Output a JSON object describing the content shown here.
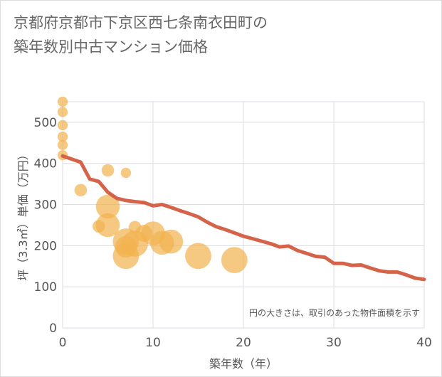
{
  "page": {
    "title_line1": "京都府京都市下京区西七条南衣田町の",
    "title_line2": "築年数別中古マンション価格"
  },
  "chart_data": {
    "type": "scatter",
    "title": "京都府京都市下京区西七条南衣田町の築年数別中古マンション価格",
    "xlabel": "築年数（年）",
    "ylabel": "坪（3.3㎡）単価（万円）",
    "xlim": [
      0,
      40
    ],
    "ylim": [
      0,
      550
    ],
    "xticks": [
      0,
      10,
      20,
      30,
      40
    ],
    "yticks": [
      0,
      100,
      200,
      300,
      400,
      500
    ],
    "grid": true,
    "note": "円の大きさは、取引のあった物件面積を示す",
    "colors": {
      "bubble": "#f2b24f",
      "trend": "#d4634a",
      "grid": "#d8dde8"
    },
    "bubbles": [
      {
        "x": 0,
        "y": 550,
        "size": 2
      },
      {
        "x": 0,
        "y": 525,
        "size": 2
      },
      {
        "x": 0,
        "y": 493,
        "size": 2
      },
      {
        "x": 0,
        "y": 465,
        "size": 2
      },
      {
        "x": 0,
        "y": 445,
        "size": 2
      },
      {
        "x": 0,
        "y": 420,
        "size": 2
      },
      {
        "x": 2,
        "y": 335,
        "size": 3
      },
      {
        "x": 4,
        "y": 247,
        "size": 3
      },
      {
        "x": 5,
        "y": 383,
        "size": 3
      },
      {
        "x": 5,
        "y": 295,
        "size": 8
      },
      {
        "x": 5,
        "y": 250,
        "size": 8
      },
      {
        "x": 7,
        "y": 377,
        "size": 2
      },
      {
        "x": 8,
        "y": 245,
        "size": 3
      },
      {
        "x": 7,
        "y": 210,
        "size": 9
      },
      {
        "x": 7,
        "y": 175,
        "size": 9
      },
      {
        "x": 7,
        "y": 197,
        "size": 7
      },
      {
        "x": 8,
        "y": 205,
        "size": 9
      },
      {
        "x": 9,
        "y": 230,
        "size": 5
      },
      {
        "x": 10,
        "y": 230,
        "size": 8
      },
      {
        "x": 11,
        "y": 207,
        "size": 8
      },
      {
        "x": 12,
        "y": 210,
        "size": 8
      },
      {
        "x": 15,
        "y": 175,
        "size": 9
      },
      {
        "x": 19,
        "y": 165,
        "size": 9
      }
    ],
    "trend": {
      "x": [
        0,
        2,
        3,
        4,
        5,
        6,
        7,
        8,
        9,
        10,
        11,
        12,
        13,
        14,
        15,
        16,
        17,
        18,
        19,
        20,
        21,
        22,
        23,
        24,
        25,
        26,
        27,
        28,
        29,
        30,
        31,
        32,
        33,
        34,
        35,
        36,
        37,
        38,
        39,
        40
      ],
      "y": [
        418,
        403,
        362,
        356,
        330,
        315,
        310,
        307,
        305,
        297,
        300,
        293,
        285,
        278,
        270,
        257,
        246,
        239,
        231,
        223,
        217,
        211,
        205,
        197,
        199,
        188,
        181,
        174,
        172,
        157,
        157,
        152,
        153,
        146,
        139,
        136,
        136,
        129,
        121,
        118
      ]
    }
  }
}
